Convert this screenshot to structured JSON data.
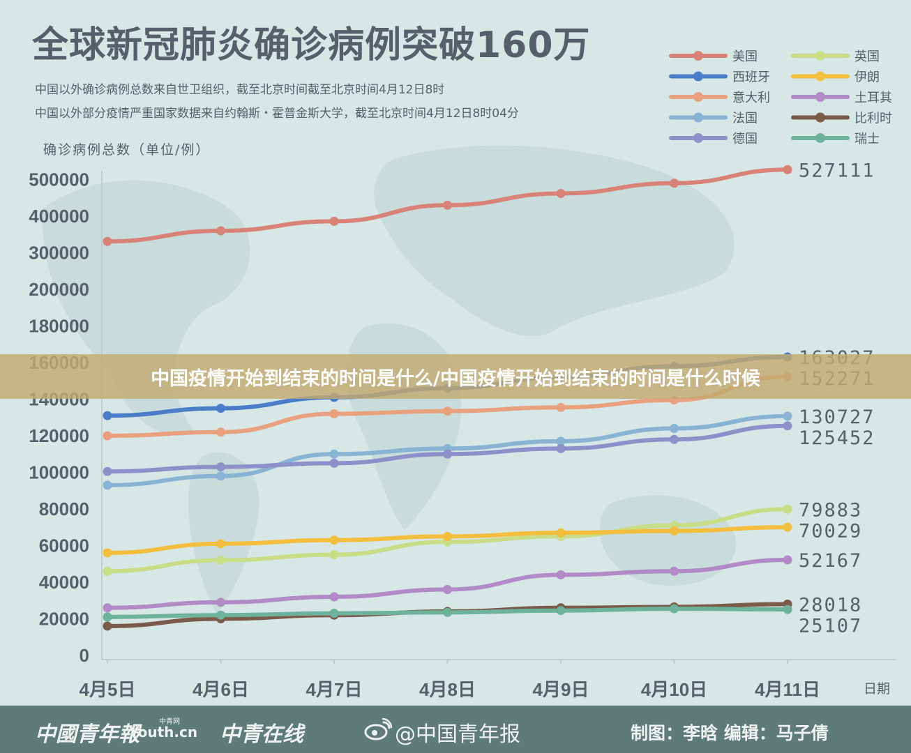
{
  "header": {
    "title": "全球新冠肺炎确诊病例突破160万",
    "note_1": "中国以外确诊病例总数来自世卫组织，截至北京时间截至北京时间4月12日8时",
    "note_2": "中国以外部分疫情严重国家数据来自约翰斯・霍普金斯大学，截至北京时间4月12日8时04分"
  },
  "banner": {
    "text": "中国疫情开始到结束的时间是什么/中国疫情开始到结束的时间是什么时候"
  },
  "footer": {
    "logo_1": "中國青年報",
    "logo_2": "Youth.cn",
    "logo_2_tag": "中青网",
    "logo_3": "中青在线",
    "weibo": "@中国青年报",
    "credits": "制图：李晗  编辑：马子倩"
  },
  "chart_data": {
    "type": "line",
    "ylabel": "确诊病例总数（单位/例）",
    "xlabel": "日期",
    "categories": [
      "4月5日",
      "4月6日",
      "4月7日",
      "4月8日",
      "4月9日",
      "4月10日",
      "4月11日"
    ],
    "y_ticks": [
      0,
      20000,
      40000,
      60000,
      80000,
      100000,
      120000,
      140000,
      160000,
      180000,
      200000,
      300000,
      400000,
      500000
    ],
    "y_scale_note": "broken axis: 0-200000 in steps of 20000, then 300000, 400000, 500000 at the same spacing",
    "legend_position": "top-right",
    "series": [
      {
        "name": "美国",
        "color": "#d98277",
        "values": [
          331000,
          360000,
          386000,
          430000,
          462000,
          490000,
          527111
        ],
        "end_label": "527111"
      },
      {
        "name": "西班牙",
        "color": "#4a7cc8",
        "values": [
          131000,
          135000,
          141000,
          146000,
          152000,
          158000,
          163027
        ],
        "end_label": "163027"
      },
      {
        "name": "意大利",
        "color": "#e9a07e",
        "values": [
          120000,
          122000,
          132000,
          133500,
          135500,
          139500,
          152271
        ],
        "end_label": "152271"
      },
      {
        "name": "法国",
        "color": "#88b3d3",
        "values": [
          93000,
          98000,
          110000,
          113000,
          117000,
          124000,
          130727
        ],
        "end_label": "130727"
      },
      {
        "name": "德国",
        "color": "#8e91c9",
        "values": [
          100500,
          103000,
          105000,
          110000,
          113000,
          118000,
          125452
        ],
        "end_label": "125452"
      },
      {
        "name": "英国",
        "color": "#c9dc86",
        "values": [
          46000,
          52000,
          55000,
          62000,
          65000,
          71000,
          79883
        ],
        "end_label": "79883"
      },
      {
        "name": "伊朗",
        "color": "#f3be3d",
        "values": [
          56000,
          61000,
          63000,
          65000,
          67000,
          68000,
          70029
        ],
        "end_label": "70029"
      },
      {
        "name": "土耳其",
        "color": "#b18ac6",
        "values": [
          26000,
          29000,
          32000,
          36000,
          44000,
          46000,
          52167
        ],
        "end_label": "52167"
      },
      {
        "name": "比利时",
        "color": "#7a5a48",
        "values": [
          16000,
          20000,
          22000,
          24000,
          26000,
          26500,
          28018
        ],
        "end_label": "28018"
      },
      {
        "name": "瑞士",
        "color": "#6db29a",
        "values": [
          21000,
          22000,
          23000,
          23500,
          24500,
          25500,
          25107
        ],
        "end_label": "25107"
      }
    ]
  }
}
